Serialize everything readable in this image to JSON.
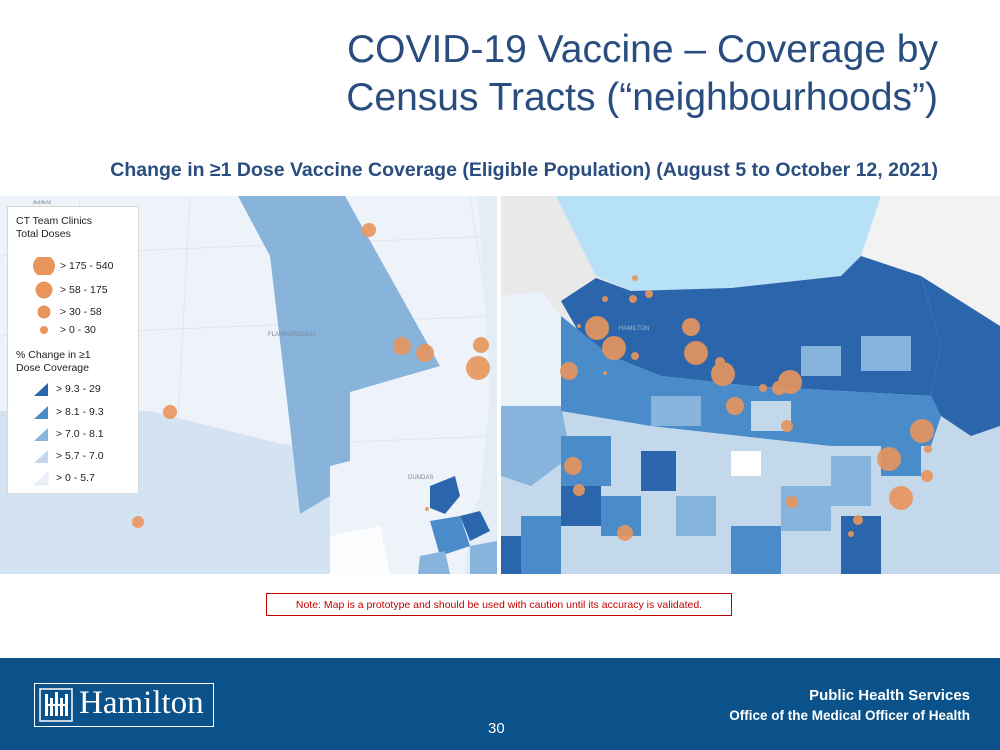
{
  "slide": {
    "title_line1": "COVID-19 Vaccine – Coverage by",
    "title_line2": "Census Tracts (“neighbourhoods”)",
    "subtitle": "Change in ≥1 Dose Vaccine Coverage (Eligible Population) (August 5 to October 12, 2021)",
    "note": "Note: Map is a prototype and should be used with caution until its accuracy is validated.",
    "page_number": "30"
  },
  "legend": {
    "doses_title_line1": "CT Team Clinics",
    "doses_title_line2": "Total Doses",
    "dose_classes": [
      "> 175 - 540",
      "> 58 - 175",
      "> 30 - 58",
      "> 0 - 30"
    ],
    "change_title_line1": "% Change in ≥1",
    "change_title_line2": "Dose Coverage",
    "change_classes": [
      "> 9.3 - 29",
      "> 8.1 - 9.3",
      "> 7.0 - 8.1",
      "> 5.7 - 7.0",
      "> 0 - 5.7"
    ]
  },
  "map_labels": {
    "flamborough": "FLAMBOROUGH",
    "dundas": "DUNDAS",
    "hamilton": "HAMILTON",
    "corner": "Ashfield"
  },
  "footer": {
    "logo_text": "Hamilton",
    "org_line1": "Public Health Services",
    "org_line2": "Office of the Medical Officer of Health"
  },
  "colors": {
    "class_5": "#2b66ad",
    "class_4": "#4a8bc9",
    "class_3": "#86b4dc",
    "class_2": "#c4d8eb",
    "class_1": "#eaf1f9",
    "dot": "#e8955c",
    "water": "#b6e1f6",
    "title": "#2a4d7f",
    "footer": "#0a5289",
    "note": "#c00000"
  }
}
